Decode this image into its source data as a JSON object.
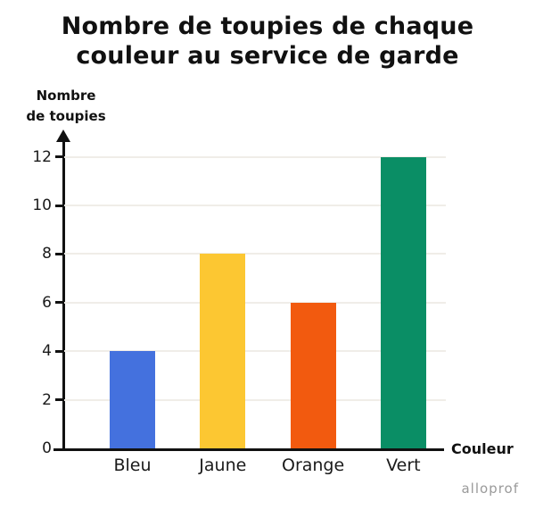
{
  "chart_data": {
    "type": "bar",
    "title": "Nombre de toupies de chaque\ncouleur au service de garde",
    "ylabel": "Nombre\nde toupies",
    "xlabel": "Couleur",
    "categories": [
      "Bleu",
      "Jaune",
      "Orange",
      "Vert"
    ],
    "values": [
      4,
      8,
      6,
      12
    ],
    "colors": [
      "#4471DE",
      "#FCC732",
      "#F25A0F",
      "#0A8E65"
    ],
    "ylim": [
      0,
      13
    ],
    "yticks": [
      0,
      2,
      4,
      6,
      8,
      10,
      12
    ],
    "grid": "horizontal",
    "gridline_color": "#F0EDE8",
    "axis_color": "#111111",
    "text_color": "#1A1A1A",
    "legend": "none"
  },
  "footer": {
    "logo_text": "alloprof",
    "logo_color": "#9A9A9A"
  }
}
